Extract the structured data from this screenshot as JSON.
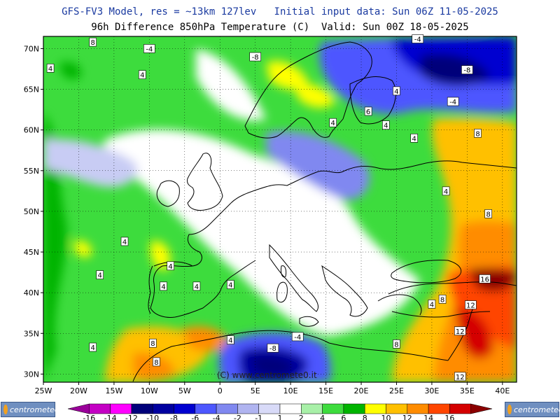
{
  "header": {
    "title_line1": "GFS-FV3 Model, res = ~13km 127lev   Initial input data: Sun 06Z 11-05-2025",
    "title_line2": "96h Difference 850hPa Temperature (C)  Valid: Sun 00Z 18-05-2025"
  },
  "map": {
    "longitude_labels": [
      "25W",
      "20W",
      "15W",
      "10W",
      "5W",
      "0",
      "5E",
      "10E",
      "15E",
      "20E",
      "25E",
      "30E",
      "35E",
      "40E"
    ],
    "latitude_labels": [
      "70N",
      "65N",
      "60N",
      "55N",
      "50N",
      "45N",
      "40N",
      "35N",
      "30N"
    ],
    "contour_labels": [
      {
        "id": "c1",
        "text": "8",
        "lon": -18,
        "lat": 70.8
      },
      {
        "id": "c2",
        "text": "4",
        "lon": -24,
        "lat": 67.6
      },
      {
        "id": "c3",
        "text": "4",
        "lon": -11,
        "lat": 66.8
      },
      {
        "id": "c4",
        "text": "-4",
        "lon": -10,
        "lat": 70
      },
      {
        "id": "c5",
        "text": "-8",
        "lon": 5,
        "lat": 69
      },
      {
        "id": "c6",
        "text": "4",
        "lon": 25,
        "lat": 64.8
      },
      {
        "id": "c7",
        "text": "6",
        "lon": 21,
        "lat": 62.3
      },
      {
        "id": "c8",
        "text": "4",
        "lon": 16,
        "lat": 60.9
      },
      {
        "id": "c9",
        "text": "4",
        "lon": 23.5,
        "lat": 60.6
      },
      {
        "id": "c10",
        "text": "-4",
        "lon": 28,
        "lat": 71.2
      },
      {
        "id": "c11",
        "text": "-8",
        "lon": 35,
        "lat": 67.4
      },
      {
        "id": "c12",
        "text": "-4",
        "lon": 33,
        "lat": 63.5
      },
      {
        "id": "c13",
        "text": "4",
        "lon": 27.5,
        "lat": 59
      },
      {
        "id": "c14",
        "text": "8",
        "lon": 36.5,
        "lat": 59.6
      },
      {
        "id": "c15",
        "text": "4",
        "lon": 32,
        "lat": 52.5
      },
      {
        "id": "c16",
        "text": "8",
        "lon": 38,
        "lat": 49.7
      },
      {
        "id": "c17",
        "text": "4",
        "lon": -13.5,
        "lat": 46.3
      },
      {
        "id": "c18",
        "text": "4",
        "lon": -17,
        "lat": 42.2
      },
      {
        "id": "c19",
        "text": "4",
        "lon": -7,
        "lat": 43.3
      },
      {
        "id": "c20",
        "text": "4",
        "lon": -8,
        "lat": 40.8
      },
      {
        "id": "c21",
        "text": "4",
        "lon": -3.3,
        "lat": 40.8
      },
      {
        "id": "c22",
        "text": "4",
        "lon": 1.5,
        "lat": 41
      },
      {
        "id": "c23",
        "text": "16",
        "lon": 37.5,
        "lat": 41.7
      },
      {
        "id": "c24",
        "text": "8",
        "lon": 31.5,
        "lat": 39.2
      },
      {
        "id": "c25",
        "text": "4",
        "lon": 30,
        "lat": 38.6
      },
      {
        "id": "c26",
        "text": "12",
        "lon": 35.5,
        "lat": 38.5
      },
      {
        "id": "c27",
        "text": "12",
        "lon": 34,
        "lat": 35.3
      },
      {
        "id": "c28",
        "text": "8",
        "lon": -9.5,
        "lat": 33.8
      },
      {
        "id": "c29",
        "text": "4",
        "lon": 1.5,
        "lat": 34.2
      },
      {
        "id": "c30",
        "text": "-4",
        "lon": 11,
        "lat": 34.6
      },
      {
        "id": "c31",
        "text": "-8",
        "lon": 7.5,
        "lat": 33.2
      },
      {
        "id": "c32",
        "text": "8",
        "lon": 25,
        "lat": 33.7
      },
      {
        "id": "c33",
        "text": "4",
        "lon": -18,
        "lat": 33.3
      },
      {
        "id": "c34",
        "text": "8",
        "lon": -9,
        "lat": 31.5
      },
      {
        "id": "c35",
        "text": "12",
        "lon": 34,
        "lat": 29.7
      }
    ],
    "credit": "(C) www.centromete0.it",
    "colors": {
      "land_outline": "#000000",
      "water_bg": "#ffffff",
      "frame": "#000000"
    }
  },
  "colorbar": {
    "labels": [
      "-16",
      "-14",
      "-12",
      "-10",
      "-8",
      "-6",
      "-4",
      "-2",
      "-1",
      "1",
      "2",
      "4",
      "6",
      "8",
      "10",
      "12",
      "14",
      "16"
    ],
    "colors": [
      "#9a009a",
      "#c400c4",
      "#ff00ff",
      "#00007a",
      "#0000a0",
      "#0000d0",
      "#4d57ff",
      "#8088f0",
      "#b0b4f0",
      "#d8daf8",
      "#ffffff",
      "#a8f0a8",
      "#3ddc3d",
      "#00b400",
      "#ffff00",
      "#ffc000",
      "#ff8c00",
      "#ff4500",
      "#d40000",
      "#8b0000"
    ]
  },
  "logos": {
    "left_text": "centrometeo",
    "right_text": "centrometeo"
  }
}
